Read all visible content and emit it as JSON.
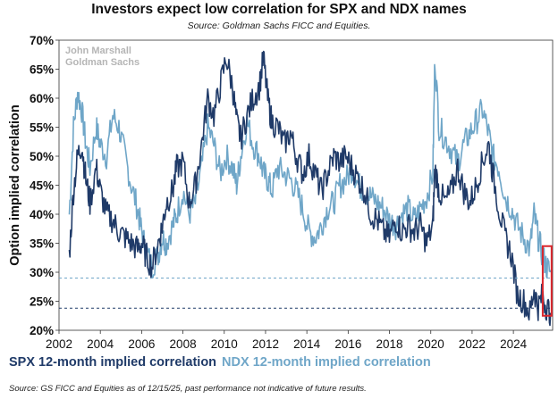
{
  "chart_data": {
    "type": "line",
    "title": "Investors expect low correlation for SPX and NDX names",
    "subtitle": "Source: Goldman Sachs FICC and Equities.",
    "watermark": [
      "John Marshall",
      "Goldman Sachs"
    ],
    "ylabel": "Option implied correlation",
    "xlabel": "",
    "xlim": [
      2002,
      2025.9
    ],
    "ylim": [
      20,
      70
    ],
    "x_ticks": [
      2002,
      2004,
      2006,
      2008,
      2010,
      2012,
      2014,
      2016,
      2018,
      2020,
      2022,
      2024
    ],
    "y_ticks": [
      "20%",
      "25%",
      "30%",
      "35%",
      "40%",
      "45%",
      "50%",
      "55%",
      "60%",
      "65%",
      "70%"
    ],
    "reference_lines": [
      {
        "series": "SPX 12-month implied correlation",
        "value": 23.8,
        "color": "#1f3a68"
      },
      {
        "series": "NDX 12-month implied correlation",
        "value": 29.0,
        "color": "#6fa6c8"
      }
    ],
    "highlight": {
      "x_start": 2025.42,
      "x_end": 2025.85,
      "y_start": 22.5,
      "y_end": 34.5,
      "color": "#d9262c"
    },
    "series": [
      {
        "name": "SPX 12-month implied correlation",
        "color": "#1f3a68",
        "x": [
          2002.5,
          2002.7,
          2002.9,
          2003.1,
          2003.3,
          2003.5,
          2003.8,
          2004.0,
          2004.3,
          2004.6,
          2004.9,
          2005.2,
          2005.5,
          2005.8,
          2006.0,
          2006.2,
          2006.5,
          2006.8,
          2007.0,
          2007.2,
          2007.5,
          2007.7,
          2008.0,
          2008.3,
          2008.6,
          2008.9,
          2009.2,
          2009.5,
          2009.8,
          2010.1,
          2010.4,
          2010.6,
          2010.8,
          2011.1,
          2011.4,
          2011.7,
          2011.9,
          2012.1,
          2012.3,
          2012.6,
          2012.9,
          2013.2,
          2013.5,
          2013.8,
          2014.1,
          2014.4,
          2014.7,
          2015.0,
          2015.3,
          2015.6,
          2015.9,
          2016.2,
          2016.5,
          2016.8,
          2017.1,
          2017.4,
          2017.7,
          2018.0,
          2018.3,
          2018.6,
          2018.9,
          2019.2,
          2019.5,
          2019.8,
          2020.1,
          2020.2,
          2020.4,
          2020.7,
          2021.0,
          2021.3,
          2021.6,
          2021.9,
          2022.2,
          2022.5,
          2022.8,
          2023.0,
          2023.3,
          2023.6,
          2023.9,
          2024.2,
          2024.5,
          2024.8,
          2025.0,
          2025.2,
          2025.4,
          2025.6,
          2025.8
        ],
        "values": [
          33,
          44,
          50,
          52,
          46,
          42,
          48,
          44,
          40,
          39,
          37,
          36,
          35,
          34,
          35,
          33,
          31,
          35,
          38,
          42,
          44,
          48,
          49,
          42,
          45,
          52,
          60,
          57,
          62,
          67,
          62,
          56,
          53,
          57,
          60,
          62,
          67,
          60,
          56,
          55,
          52,
          54,
          50,
          47,
          50,
          47,
          44,
          47,
          50,
          49,
          50,
          48,
          46,
          44,
          40,
          39,
          37,
          36,
          39,
          37,
          38,
          37,
          38,
          35,
          38,
          48,
          44,
          42,
          44,
          48,
          44,
          42,
          45,
          49,
          52,
          47,
          41,
          36,
          33,
          26,
          25,
          23,
          27,
          24,
          26,
          24,
          23
        ]
      },
      {
        "name": "NDX 12-month implied correlation",
        "color": "#6fa6c8",
        "x": [
          2002.5,
          2002.7,
          2002.9,
          2003.1,
          2003.3,
          2003.5,
          2003.8,
          2004.0,
          2004.3,
          2004.6,
          2004.9,
          2005.2,
          2005.5,
          2005.8,
          2006.0,
          2006.2,
          2006.5,
          2006.8,
          2007.0,
          2007.2,
          2007.5,
          2007.7,
          2008.0,
          2008.3,
          2008.6,
          2008.9,
          2009.2,
          2009.5,
          2009.8,
          2010.1,
          2010.4,
          2010.6,
          2010.8,
          2011.1,
          2011.4,
          2011.7,
          2011.9,
          2012.1,
          2012.3,
          2012.6,
          2012.9,
          2013.2,
          2013.5,
          2013.8,
          2014.1,
          2014.4,
          2014.7,
          2015.0,
          2015.3,
          2015.6,
          2015.9,
          2016.2,
          2016.5,
          2016.8,
          2017.1,
          2017.4,
          2017.7,
          2018.0,
          2018.3,
          2018.6,
          2018.9,
          2019.2,
          2019.5,
          2019.8,
          2020.1,
          2020.2,
          2020.4,
          2020.7,
          2021.0,
          2021.3,
          2021.6,
          2021.9,
          2022.2,
          2022.5,
          2022.8,
          2023.0,
          2023.3,
          2023.6,
          2023.9,
          2024.2,
          2024.5,
          2024.8,
          2025.0,
          2025.2,
          2025.4,
          2025.6,
          2025.8
        ],
        "values": [
          40,
          55,
          61,
          58,
          52,
          48,
          55,
          52,
          50,
          57,
          55,
          50,
          45,
          41,
          37,
          34,
          31,
          33,
          36,
          35,
          38,
          40,
          44,
          40,
          42,
          48,
          55,
          52,
          47,
          50,
          48,
          45,
          50,
          56,
          52,
          50,
          47,
          46,
          44,
          48,
          47,
          46,
          44,
          41,
          37,
          36,
          38,
          41,
          42,
          45,
          46,
          48,
          45,
          44,
          43,
          42,
          41,
          39,
          38,
          40,
          41,
          39,
          41,
          43,
          47,
          67,
          55,
          53,
          51,
          49,
          52,
          54,
          56,
          58,
          54,
          50,
          48,
          43,
          41,
          38,
          36,
          34,
          40,
          36,
          33,
          31,
          30
        ]
      }
    ]
  },
  "legend": {
    "spx_label": "SPX 12-month implied correlation",
    "ndx_label": "NDX 12-month implied correlation",
    "spx_color": "#1f3a68",
    "ndx_color": "#6fa6c8"
  },
  "footnote": "Source: GS FICC and Equities as of 12/15/25, past performance not indicative of future results."
}
